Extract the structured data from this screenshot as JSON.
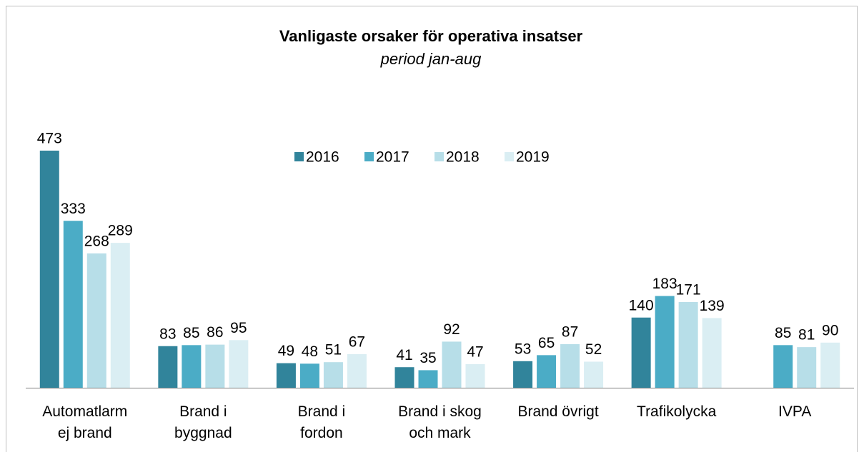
{
  "chart_data": {
    "type": "bar",
    "title": "Vanligaste orsaker för operativa insatser",
    "subtitle": "period jan-aug",
    "categories": [
      "Automatlarm\nej brand",
      "Brand i\nbyggnad",
      "Brand i\nfordon",
      "Brand i skog\noch mark",
      "Brand övrigt",
      "Trafikolycka",
      "IVPA"
    ],
    "series": [
      {
        "name": "2016",
        "color": "#31849b",
        "values": [
          473,
          83,
          49,
          41,
          53,
          140,
          null
        ]
      },
      {
        "name": "2017",
        "color": "#4bacc6",
        "values": [
          333,
          85,
          48,
          35,
          65,
          183,
          85
        ]
      },
      {
        "name": "2018",
        "color": "#b7dee8",
        "values": [
          268,
          86,
          51,
          92,
          87,
          171,
          81
        ]
      },
      {
        "name": "2019",
        "color": "#daeef3",
        "values": [
          289,
          95,
          67,
          47,
          52,
          139,
          90
        ]
      }
    ],
    "legend": "top"
  }
}
